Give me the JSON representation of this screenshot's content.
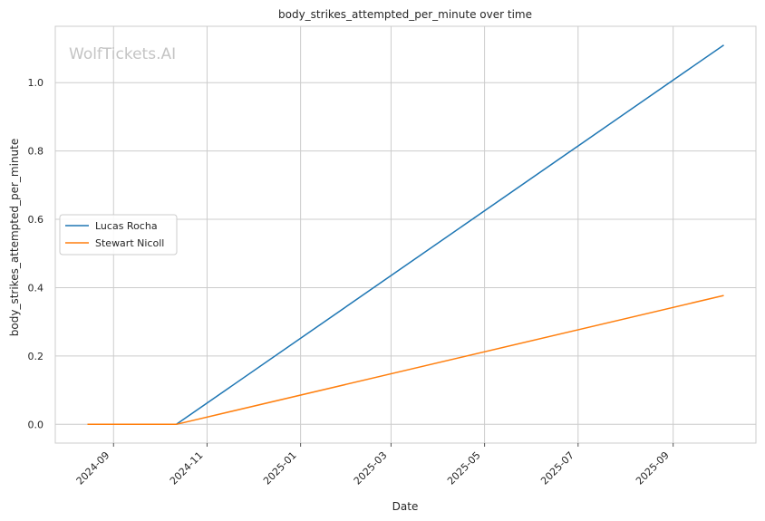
{
  "chart_data": {
    "type": "line",
    "title": "body_strikes_attempted_per_minute over time",
    "xlabel": "Date",
    "ylabel": "body_strikes_attempted_per_minute",
    "watermark": "WolfTickets.AI",
    "x_ticks": [
      "2024-09",
      "2024-11",
      "2025-01",
      "2025-03",
      "2025-05",
      "2025-07",
      "2025-09"
    ],
    "y_ticks": [
      "0.0",
      "0.2",
      "0.4",
      "0.6",
      "0.8",
      "1.0"
    ],
    "xlim": [
      "2024-07-25",
      "2025-10-25"
    ],
    "ylim": [
      -0.055,
      1.165
    ],
    "grid": true,
    "legend_position": "center-left",
    "series": [
      {
        "name": "Lucas Rocha",
        "color": "#1f77b4",
        "points": [
          {
            "x": "2024-10-12",
            "y": 0.0
          },
          {
            "x": "2025-10-04",
            "y": 1.11
          }
        ]
      },
      {
        "name": "Stewart Nicoll",
        "color": "#ff7f0e",
        "points": [
          {
            "x": "2024-08-15",
            "y": 0.0
          },
          {
            "x": "2024-10-12",
            "y": 0.0
          },
          {
            "x": "2025-10-04",
            "y": 0.377
          }
        ]
      }
    ]
  }
}
